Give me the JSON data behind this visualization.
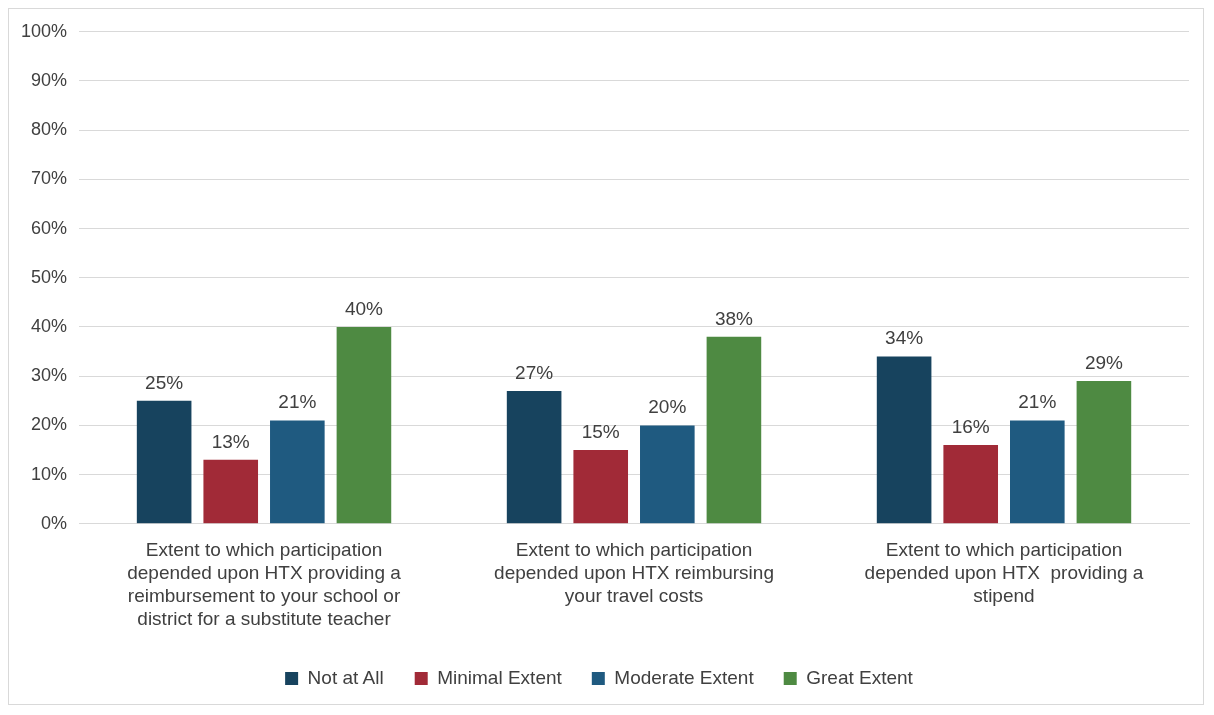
{
  "chart_data": {
    "type": "bar",
    "categories": [
      "Extent to which participation depended upon HTX providing a reimbursement to your school or district for a substitute teacher",
      "Extent to which participation depended upon HTX reimbursing your travel costs",
      "Extent to which participation depended upon HTX  providing a stipend"
    ],
    "series": [
      {
        "name": "Not at All",
        "color": "#17435e",
        "values": [
          25,
          27,
          34
        ]
      },
      {
        "name": "Minimal Extent",
        "color": "#a12a37",
        "values": [
          13,
          15,
          16
        ]
      },
      {
        "name": "Moderate Extent",
        "color": "#1f5a80",
        "values": [
          21,
          20,
          21
        ]
      },
      {
        "name": "Great Extent",
        "color": "#4e8a42",
        "values": [
          40,
          38,
          29
        ]
      }
    ],
    "ylim": [
      0,
      100
    ],
    "yticks": [
      {
        "value": 0,
        "label": "0%"
      },
      {
        "value": 10,
        "label": "10%"
      },
      {
        "value": 20,
        "label": "20%"
      },
      {
        "value": 30,
        "label": "30%"
      },
      {
        "value": 40,
        "label": "40%"
      },
      {
        "value": 50,
        "label": "50%"
      },
      {
        "value": 60,
        "label": "60%"
      },
      {
        "value": 70,
        "label": "70%"
      },
      {
        "value": 80,
        "label": "80%"
      },
      {
        "value": 90,
        "label": "90%"
      },
      {
        "value": 100,
        "label": "100%"
      }
    ],
    "value_labels": [
      [
        "25%",
        "27%",
        "34%"
      ],
      [
        "13%",
        "15%",
        "16%"
      ],
      [
        "21%",
        "20%",
        "21%"
      ],
      [
        "40%",
        "38%",
        "29%"
      ]
    ],
    "grid": "y",
    "legend": "bottom"
  }
}
